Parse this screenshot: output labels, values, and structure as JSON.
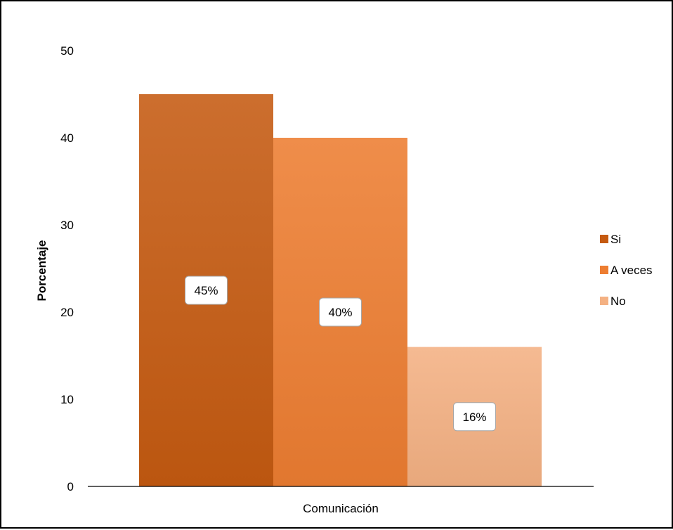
{
  "chart_data": {
    "type": "bar",
    "categories": [
      "Comunicación"
    ],
    "series": [
      {
        "name": "Si",
        "values": [
          45
        ],
        "label": "45%",
        "color": "#C55A11"
      },
      {
        "name": "A veces",
        "values": [
          40
        ],
        "label": "40%",
        "color": "#ED7D31"
      },
      {
        "name": "No",
        "values": [
          16
        ],
        "label": "16%",
        "color": "#F4B183"
      }
    ],
    "title": "",
    "xlabel": "Comunicación",
    "ylabel": "Porcentaje",
    "ylim": [
      0,
      50
    ],
    "yticks": [
      "0",
      "10",
      "20",
      "30",
      "40",
      "50"
    ],
    "grid": false,
    "legend_position": "right"
  }
}
